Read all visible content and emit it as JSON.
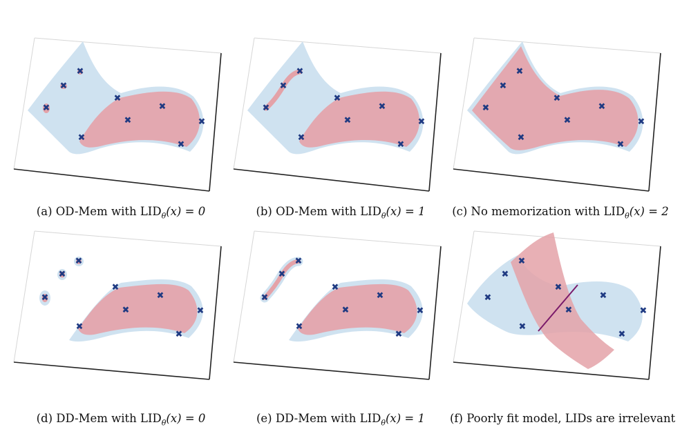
{
  "panels": [
    {
      "id": "a",
      "caption_prefix": "(a) OD-Mem with LID",
      "sub": "θ",
      "arg": "(x)",
      "eq": " = 0"
    },
    {
      "id": "b",
      "caption_prefix": "(b) OD-Mem with LID",
      "sub": "θ",
      "arg": "(x)",
      "eq": " = 1"
    },
    {
      "id": "c",
      "caption_prefix": "(c) No memorization with LID",
      "sub": "θ",
      "arg": "(x)",
      "eq": " = 2"
    },
    {
      "id": "d",
      "caption_prefix": "(d) DD-Mem with LID",
      "sub": "θ",
      "arg": "(x)",
      "eq": " = 0"
    },
    {
      "id": "e",
      "caption_prefix": "(e) DD-Mem with LID",
      "sub": "θ",
      "arg": "(x)",
      "eq": " = 1"
    },
    {
      "id": "f",
      "caption_prefix": "(f) Poorly fit model, LIDs are irrelevant",
      "sub": "",
      "arg": "",
      "eq": ""
    }
  ],
  "colors": {
    "true_manifold": "#cfe2f0",
    "model_manifold": "#e4a2a8",
    "marker": "#1f3a82",
    "intersection": "#7a1a6a",
    "axes": "#222222",
    "box": "#d6d6d6"
  }
}
